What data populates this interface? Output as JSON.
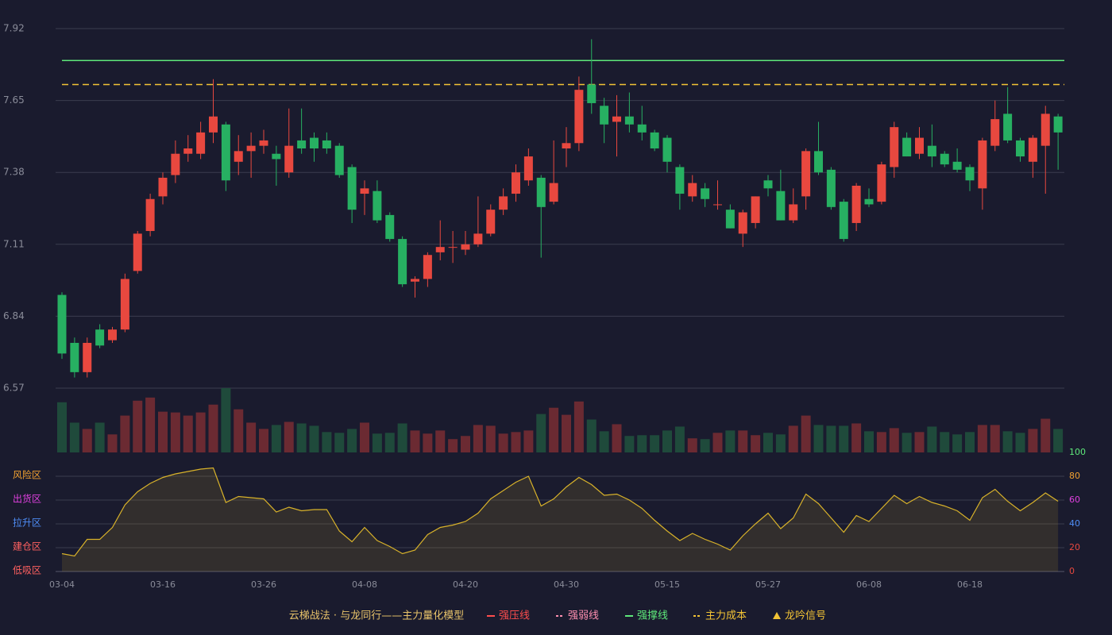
{
  "chart_data": [
    {
      "type": "candlestick",
      "title": "云梯战法 · 与龙同行——主力量化模型",
      "categories": [
        "03-04",
        null,
        null,
        null,
        null,
        null,
        null,
        null,
        "03-16",
        null,
        null,
        null,
        null,
        null,
        null,
        null,
        "03-26",
        null,
        null,
        null,
        null,
        null,
        null,
        null,
        "04-08",
        null,
        null,
        null,
        null,
        null,
        null,
        null,
        "04-20",
        null,
        null,
        null,
        null,
        null,
        null,
        null,
        "04-30",
        null,
        null,
        null,
        null,
        null,
        null,
        null,
        "05-15",
        null,
        null,
        null,
        null,
        null,
        null,
        null,
        "05-27",
        null,
        null,
        null,
        null,
        null,
        null,
        null,
        "06-08",
        null,
        null,
        null,
        null,
        null,
        null,
        null,
        "06-18",
        null,
        null,
        null,
        null,
        null,
        null,
        null
      ],
      "open": [
        6.92,
        6.74,
        6.63,
        6.79,
        6.75,
        6.79,
        7.01,
        7.16,
        7.29,
        7.37,
        7.45,
        7.45,
        7.53,
        7.56,
        7.42,
        7.46,
        7.48,
        7.45,
        7.38,
        7.5,
        7.51,
        7.5,
        7.48,
        7.4,
        7.3,
        7.31,
        7.22,
        7.13,
        6.97,
        6.98,
        7.08,
        7.1,
        7.09,
        7.11,
        7.15,
        7.24,
        7.3,
        7.35,
        7.36,
        7.27,
        7.47,
        7.49,
        7.71,
        7.63,
        7.57,
        7.59,
        7.56,
        7.53,
        7.51,
        7.4,
        7.29,
        7.32,
        7.26,
        7.24,
        7.15,
        7.19,
        7.35,
        7.31,
        7.2,
        7.29,
        7.46,
        7.39,
        7.27,
        7.19,
        7.28,
        7.27,
        7.4,
        7.51,
        7.45,
        7.48,
        7.45,
        7.42,
        7.4,
        7.32,
        7.48,
        7.6,
        7.5,
        7.42,
        7.48,
        7.59
      ],
      "high": [
        6.93,
        6.76,
        6.76,
        6.81,
        6.8,
        7.0,
        7.16,
        7.3,
        7.38,
        7.5,
        7.52,
        7.57,
        7.73,
        7.57,
        7.52,
        7.53,
        7.54,
        7.48,
        7.62,
        7.62,
        7.53,
        7.53,
        7.49,
        7.41,
        7.35,
        7.35,
        7.23,
        7.14,
        6.99,
        7.08,
        7.2,
        7.16,
        7.16,
        7.29,
        7.26,
        7.32,
        7.41,
        7.47,
        7.37,
        7.5,
        7.55,
        7.74,
        7.88,
        7.66,
        7.67,
        7.68,
        7.63,
        7.54,
        7.52,
        7.41,
        7.37,
        7.34,
        7.35,
        7.26,
        7.24,
        7.29,
        7.37,
        7.39,
        7.32,
        7.47,
        7.57,
        7.4,
        7.28,
        7.34,
        7.32,
        7.42,
        7.57,
        7.53,
        7.55,
        7.56,
        7.46,
        7.47,
        7.41,
        7.51,
        7.65,
        7.7,
        7.51,
        7.52,
        7.63,
        7.6
      ],
      "low": [
        6.68,
        6.61,
        6.61,
        6.72,
        6.74,
        6.78,
        7.0,
        7.14,
        7.26,
        7.34,
        7.42,
        7.43,
        7.49,
        7.31,
        7.37,
        7.36,
        7.45,
        7.33,
        7.36,
        7.45,
        7.42,
        7.45,
        7.36,
        7.19,
        7.22,
        7.19,
        7.12,
        6.95,
        6.91,
        6.95,
        7.05,
        7.04,
        7.07,
        7.1,
        7.14,
        7.22,
        7.27,
        7.33,
        7.06,
        7.26,
        7.4,
        7.46,
        7.6,
        7.49,
        7.44,
        7.53,
        7.5,
        7.46,
        7.38,
        7.24,
        7.27,
        7.25,
        7.24,
        7.17,
        7.1,
        7.17,
        7.29,
        7.2,
        7.19,
        7.24,
        7.37,
        7.24,
        7.12,
        7.16,
        7.25,
        7.26,
        7.36,
        7.44,
        7.43,
        7.4,
        7.4,
        7.38,
        7.31,
        7.24,
        7.46,
        7.49,
        7.42,
        7.36,
        7.3,
        7.39
      ],
      "close": [
        6.7,
        6.63,
        6.74,
        6.73,
        6.79,
        6.98,
        7.15,
        7.28,
        7.36,
        7.45,
        7.47,
        7.53,
        7.59,
        7.35,
        7.46,
        7.48,
        7.5,
        7.43,
        7.48,
        7.47,
        7.47,
        7.47,
        7.37,
        7.24,
        7.32,
        7.2,
        7.13,
        6.96,
        6.98,
        7.07,
        7.1,
        7.1,
        7.11,
        7.15,
        7.24,
        7.29,
        7.38,
        7.44,
        7.25,
        7.34,
        7.49,
        7.69,
        7.64,
        7.56,
        7.59,
        7.56,
        7.53,
        7.47,
        7.42,
        7.3,
        7.34,
        7.28,
        7.26,
        7.17,
        7.23,
        7.29,
        7.32,
        7.2,
        7.26,
        7.46,
        7.38,
        7.25,
        7.13,
        7.33,
        7.26,
        7.41,
        7.55,
        7.44,
        7.51,
        7.44,
        7.41,
        7.39,
        7.35,
        7.5,
        7.58,
        7.5,
        7.44,
        7.51,
        7.6,
        7.53
      ],
      "up_color": "#e8483f",
      "down_color": "#27b062",
      "ylim": [
        6.57,
        7.92
      ],
      "yticks": [
        6.57,
        6.84,
        7.11,
        7.38,
        7.65,
        7.92
      ],
      "grid": true,
      "legend": [
        {
          "name": "强压线",
          "color": "#ff4d4d",
          "style": "solid"
        },
        {
          "name": "强弱线",
          "color": "#ff8fb0",
          "style": "dashed"
        },
        {
          "name": "强撑线",
          "color": "#5ee87a",
          "style": "solid",
          "value": 7.8
        },
        {
          "name": "主力成本",
          "color": "#f2c335",
          "style": "dashed",
          "value": 7.71
        },
        {
          "name": "龙吟信号",
          "color": "#f2c335",
          "style": "triangle"
        }
      ]
    },
    {
      "type": "bar",
      "values": [
        64,
        38,
        30,
        38,
        23,
        47,
        66,
        70,
        52,
        51,
        47,
        51,
        61,
        82,
        55,
        38,
        30,
        35,
        39,
        37,
        34,
        26,
        25,
        30,
        38,
        24,
        25,
        37,
        28,
        24,
        28,
        17,
        21,
        35,
        34,
        24,
        26,
        28,
        49,
        57,
        48,
        65,
        42,
        27,
        36,
        21,
        22,
        22,
        28,
        33,
        18,
        17,
        25,
        28,
        28,
        22,
        25,
        23,
        34,
        47,
        35,
        34,
        34,
        37,
        27,
        26,
        31,
        25,
        26,
        33,
        26,
        23,
        26,
        35,
        35,
        27,
        25,
        30,
        43,
        30
      ],
      "up_color": "#6b2a32",
      "down_color": "#1f4a3b",
      "ylim": [
        0,
        82
      ]
    },
    {
      "type": "line",
      "values": [
        15,
        13,
        27,
        27,
        37,
        56,
        67,
        74,
        79,
        82,
        84,
        86,
        87,
        58,
        63,
        62,
        61,
        50,
        54,
        51,
        52,
        52,
        34,
        25,
        37,
        26,
        21,
        15,
        18,
        31,
        37,
        39,
        42,
        49,
        61,
        68,
        75,
        80,
        55,
        61,
        71,
        79,
        73,
        64,
        65,
        60,
        53,
        43,
        34,
        26,
        32,
        27,
        23,
        18,
        30,
        40,
        49,
        36,
        45,
        65,
        57,
        45,
        33,
        47,
        42,
        53,
        64,
        57,
        63,
        58,
        55,
        51,
        43,
        62,
        69,
        59,
        51,
        58,
        66,
        59
      ],
      "color": "#d8b22a",
      "ylim": [
        0,
        100
      ],
      "yticks": [
        0,
        20,
        40,
        60,
        80,
        100
      ],
      "ytick_colors": [
        "#e8483f",
        "#e8483f",
        "#4f8ef7",
        "#e040e0",
        "#f0a030",
        "#5ee87a"
      ],
      "zones": [
        {
          "value": 80,
          "label": "风险区",
          "color": "#f0a030"
        },
        {
          "value": 60,
          "label": "出货区",
          "color": "#e040e0"
        },
        {
          "value": 40,
          "label": "拉升区",
          "color": "#4f8ef7"
        },
        {
          "value": 20,
          "label": "建仓区",
          "color": "#ff6060"
        },
        {
          "value": 0,
          "label": "低吸区",
          "color": "#ff6060"
        }
      ]
    }
  ]
}
